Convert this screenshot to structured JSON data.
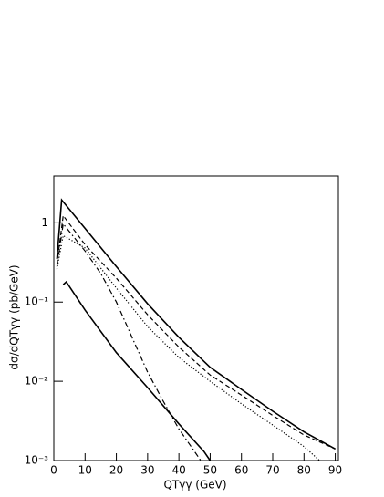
{
  "chart_data": {
    "type": "line",
    "xlabel": "QTγγ (GeV)",
    "ylabel": "dσ/dQTγγ (pb/GeV)",
    "xlim": [
      0,
      91
    ],
    "xticks": [
      0,
      10,
      20,
      30,
      40,
      50,
      60,
      70,
      80,
      90
    ],
    "ylim": [
      0.001,
      3.9
    ],
    "ylog": true,
    "yticks": [
      {
        "value": 0.001,
        "label": "10⁻³"
      },
      {
        "value": 0.01,
        "label": "10⁻²"
      },
      {
        "value": 0.1,
        "label": "10⁻¹"
      },
      1
    ],
    "series": [
      {
        "color": "#000000",
        "dash": "solid",
        "x": [
          1,
          2.5,
          10,
          20,
          30,
          40,
          50,
          60,
          70,
          80,
          90
        ],
        "values": [
          0.35,
          1.94,
          0.85,
          0.28,
          0.095,
          0.036,
          0.015,
          0.0079,
          0.0042,
          0.0023,
          0.0014
        ]
      },
      {
        "color": "#000000",
        "dash": "dashed",
        "x": [
          1,
          3,
          10,
          20,
          30,
          40,
          50,
          60,
          70,
          80,
          90
        ],
        "values": [
          0.3,
          1.23,
          0.53,
          0.2,
          0.069,
          0.027,
          0.012,
          0.0067,
          0.0037,
          0.0021,
          0.0014
        ]
      },
      {
        "color": "#000000",
        "dash": "dashdot",
        "x": [
          1,
          3,
          10,
          15,
          20,
          25,
          30,
          35,
          40,
          45,
          47
        ],
        "values": [
          0.28,
          0.97,
          0.44,
          0.23,
          0.1,
          0.036,
          0.013,
          0.0056,
          0.0025,
          0.0013,
          0.001
        ]
      },
      {
        "color": "#000000",
        "dash": "dotted",
        "x": [
          1,
          3,
          10,
          20,
          30,
          40,
          50,
          60,
          70,
          80,
          85
        ],
        "values": [
          0.26,
          0.69,
          0.48,
          0.15,
          0.049,
          0.02,
          0.01,
          0.0052,
          0.0028,
          0.0015,
          0.001
        ]
      },
      {
        "color": "#000000",
        "dash": "solid",
        "x": [
          3,
          4,
          10,
          20,
          30,
          40,
          48,
          50
        ],
        "values": [
          0.166,
          0.18,
          0.079,
          0.023,
          0.0083,
          0.0029,
          0.0013,
          0.001
        ]
      }
    ]
  }
}
